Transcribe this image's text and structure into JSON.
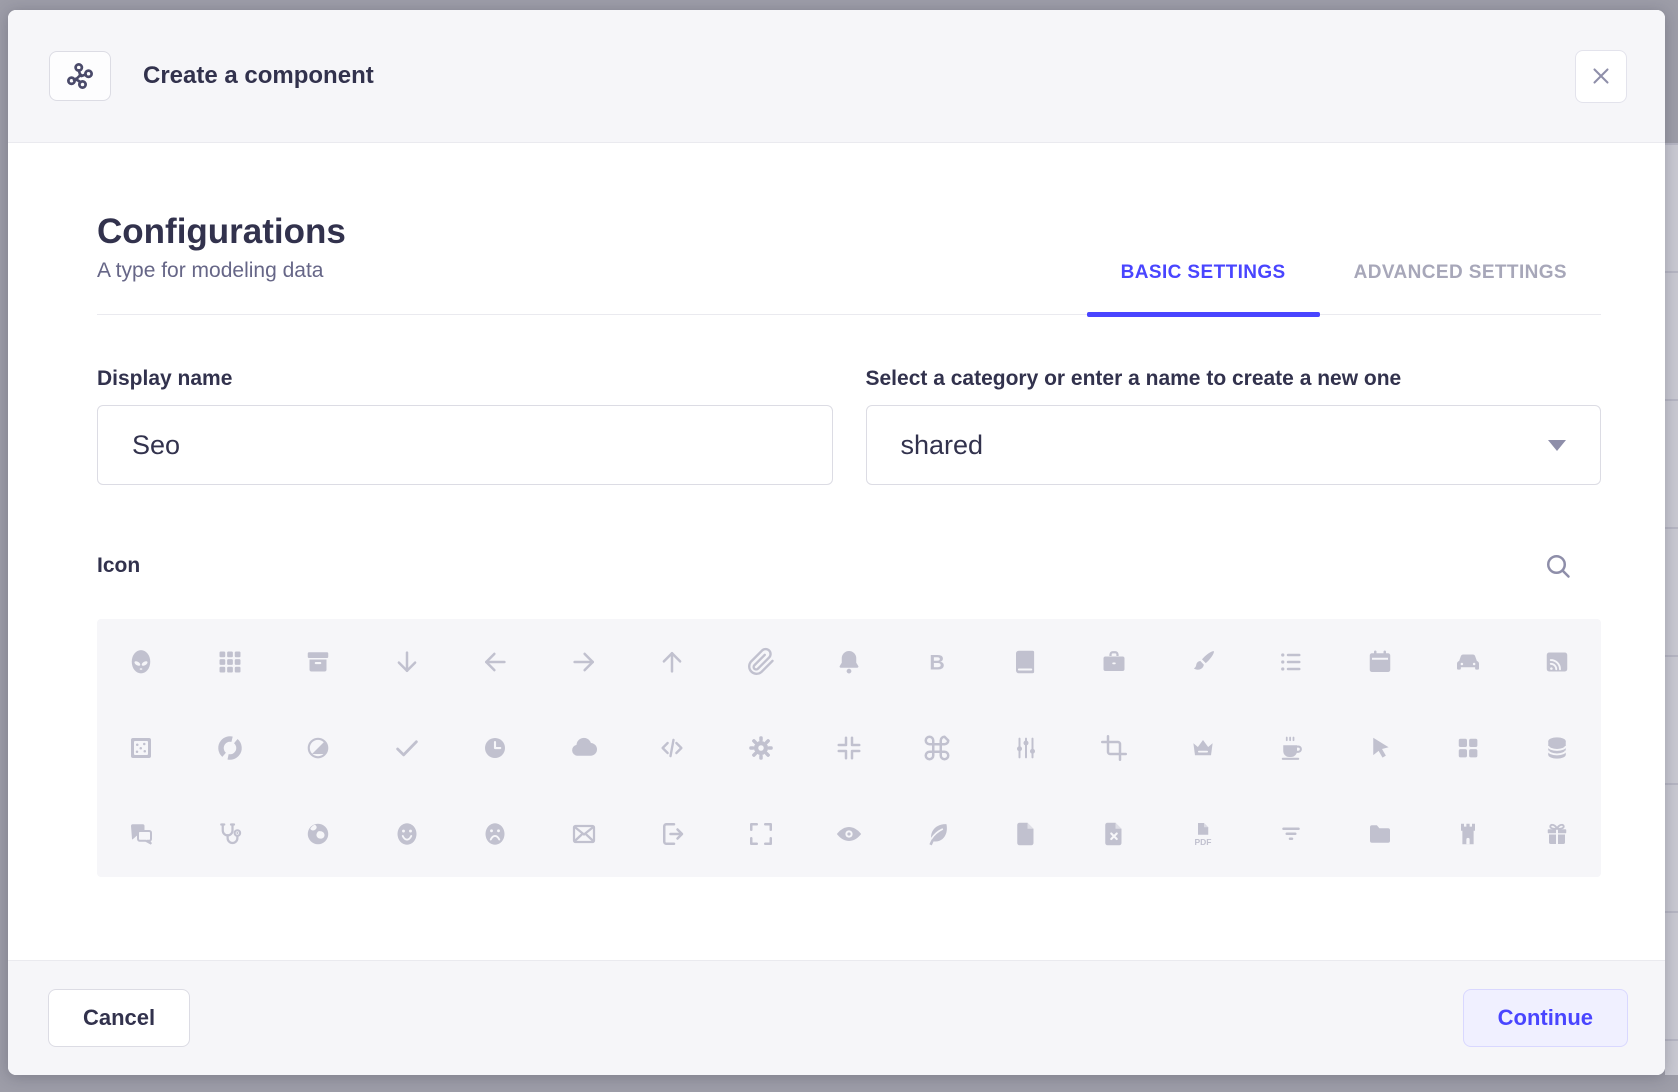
{
  "modal": {
    "title": "Create a component",
    "header_icon": "component-icon",
    "heading": "Configurations",
    "subheading": "A type for modeling data",
    "tabs": [
      {
        "label": "BASIC SETTINGS",
        "active": true
      },
      {
        "label": "ADVANCED SETTINGS",
        "active": false
      }
    ],
    "fields": {
      "display_name": {
        "label": "Display name",
        "value": "Seo"
      },
      "category": {
        "label": "Select a category or enter a name to create a new one",
        "value": "shared"
      }
    },
    "icon_picker": {
      "label": "Icon",
      "search_icon": "search-icon",
      "rows": [
        [
          "alien",
          "apps",
          "archive",
          "arrow-down",
          "arrow-left",
          "arrow-right",
          "arrow-up",
          "attachment",
          "bell",
          "bold",
          "book",
          "briefcase",
          "brush",
          "bullet-list",
          "calendar",
          "car",
          "cast"
        ],
        [
          "chart-bubble",
          "chart-circle",
          "chart-pie",
          "check",
          "clock",
          "cloud",
          "code",
          "cog",
          "collapse",
          "command",
          "connector",
          "crop",
          "crown",
          "cup",
          "cursor",
          "dashboard",
          "database"
        ],
        [
          "discuss",
          "doctor",
          "earth",
          "emotion-happy",
          "emotion-unhappy",
          "envelop",
          "exit",
          "expand",
          "eye",
          "feather",
          "file",
          "file-error",
          "file-pdf",
          "filter",
          "folder",
          "gate",
          "gift"
        ]
      ]
    },
    "footer": {
      "cancel_label": "Cancel",
      "continue_label": "Continue"
    }
  },
  "colors": {
    "primary": "#4945ff",
    "primary_button_bg": "#f0f0ff",
    "primary_button_border": "#d9d8ff",
    "heading_text": "#32324d",
    "subtitle_text": "#666687",
    "inactive_tab": "#a7a7b9",
    "panel_bg": "#f6f6f9",
    "input_border": "#dcdce4",
    "icon_grey": "#c1c1cf",
    "overlay_bg": "#9d9da8"
  }
}
